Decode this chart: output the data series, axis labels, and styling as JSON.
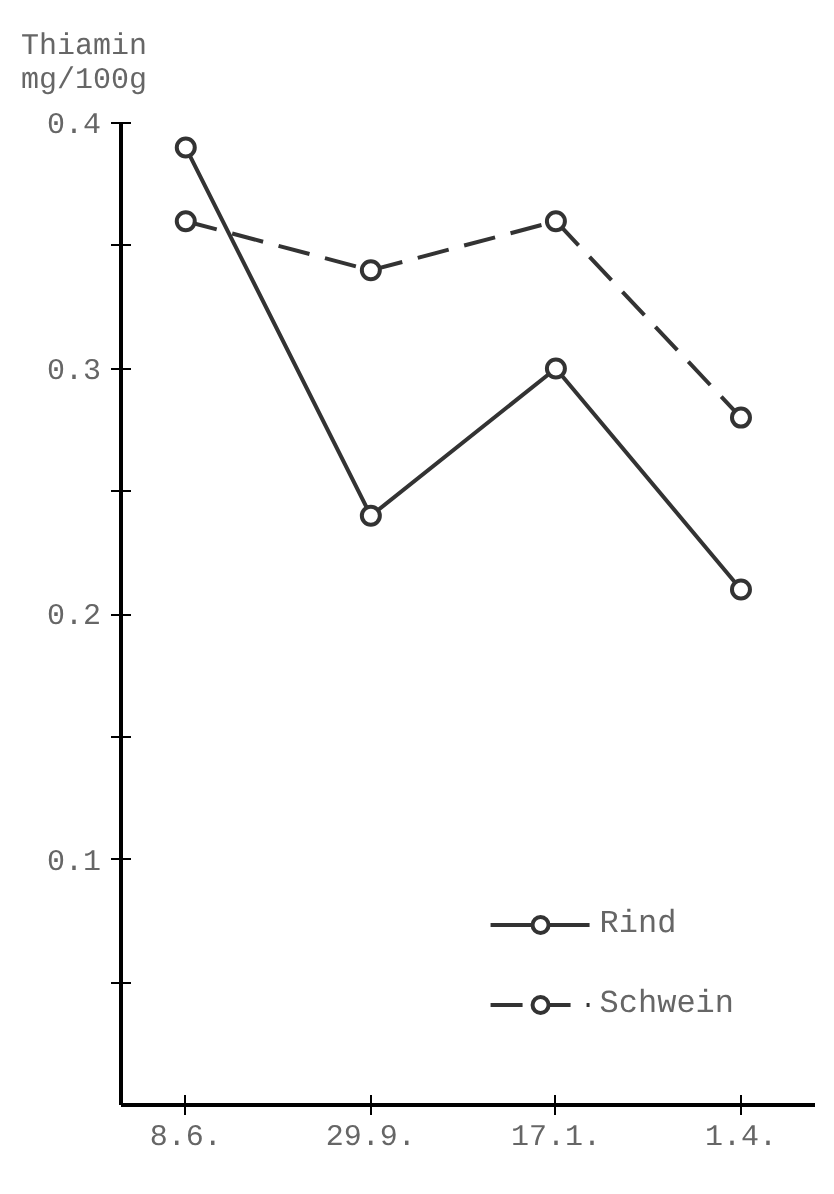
{
  "chart_data": {
    "type": "line",
    "ylabel": "Thiamin\nmg/100g",
    "categories": [
      "8.6.",
      "29.9.",
      "17.1.",
      "1.4."
    ],
    "series": [
      {
        "name": "Rind",
        "color": "#333333",
        "values": [
          0.39,
          0.24,
          0.3,
          0.21
        ],
        "line_style": "solid"
      },
      {
        "name": "Schwein",
        "color": "#333333",
        "values": [
          0.36,
          0.34,
          0.36,
          0.28
        ],
        "line_style": "dashed"
      }
    ],
    "ylim": [
      0,
      0.4
    ],
    "yticks": [
      {
        "value": 0.05,
        "label": null
      },
      0.1,
      {
        "value": 0.15,
        "label": null
      },
      0.2,
      {
        "value": 0.25,
        "label": null
      },
      0.3,
      {
        "value": 0.35,
        "label": null
      },
      0.4
    ],
    "marker": "circle",
    "grid": false,
    "legend": "bottom right"
  }
}
